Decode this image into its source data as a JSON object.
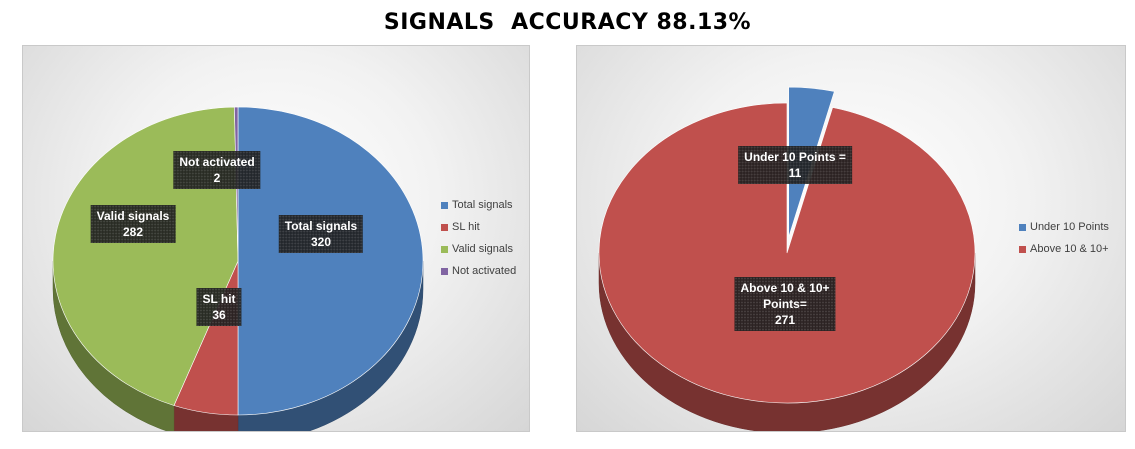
{
  "page": {
    "title": "SIGNALS  ACCURACY 88.13%"
  },
  "chart_data": [
    {
      "type": "pie",
      "style": "3d",
      "categories": [
        "Total signals",
        "SL hit",
        "Valid signals",
        "Not activated"
      ],
      "values": [
        320,
        36,
        282,
        2
      ],
      "colors": [
        "#4F81BD",
        "#C0504D",
        "#9BBB59",
        "#8064A2"
      ],
      "labels": [
        {
          "lines": [
            "Total signals",
            "320"
          ]
        },
        {
          "lines": [
            "SL hit",
            "36"
          ]
        },
        {
          "lines": [
            "Valid signals",
            "282"
          ]
        },
        {
          "lines": [
            "Not activated",
            "2"
          ]
        }
      ],
      "legend": [
        "Total signals",
        "SL hit",
        "Valid signals",
        "Not activated"
      ],
      "legend_position": "right"
    },
    {
      "type": "pie",
      "style": "3d",
      "categories": [
        "Under 10 Points",
        "Above 10 & 10+"
      ],
      "values": [
        11,
        271
      ],
      "colors": [
        "#4F81BD",
        "#C0504D"
      ],
      "labels": [
        {
          "lines": [
            "Under 10 Points =",
            "11"
          ]
        },
        {
          "lines": [
            "Above 10 & 10+",
            "Points=",
            "271"
          ]
        }
      ],
      "legend": [
        "Under 10 Points",
        "Above 10 & 10+"
      ],
      "legend_position": "right"
    }
  ]
}
